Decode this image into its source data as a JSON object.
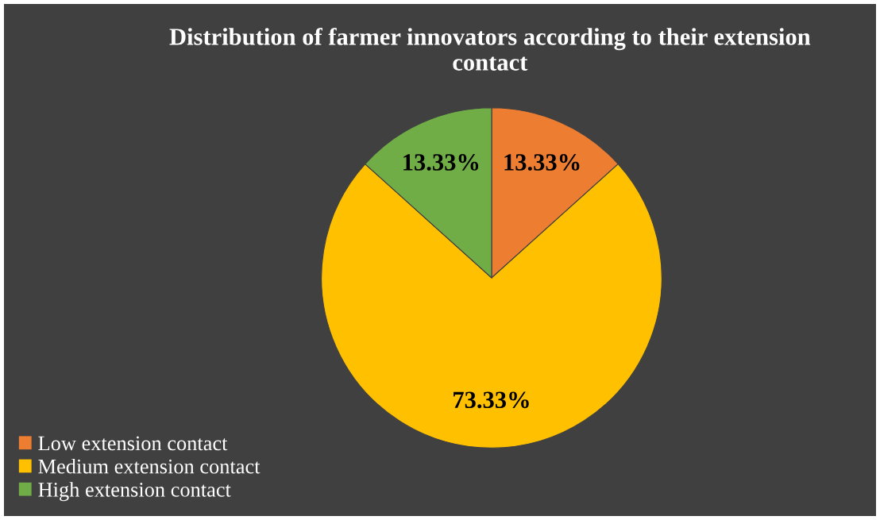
{
  "chart_data": {
    "type": "pie",
    "title": "Distribution of farmer innovators according to their extension contact",
    "categories": [
      "Low extension contact",
      "Medium extension contact",
      "High extension contact"
    ],
    "values": [
      13.33,
      73.33,
      13.33
    ],
    "colors": [
      "#ed7d31",
      "#ffc000",
      "#70ad47"
    ],
    "value_labels": [
      "13.33%",
      "73.33%",
      "13.33%"
    ],
    "legend": "bottom left"
  }
}
